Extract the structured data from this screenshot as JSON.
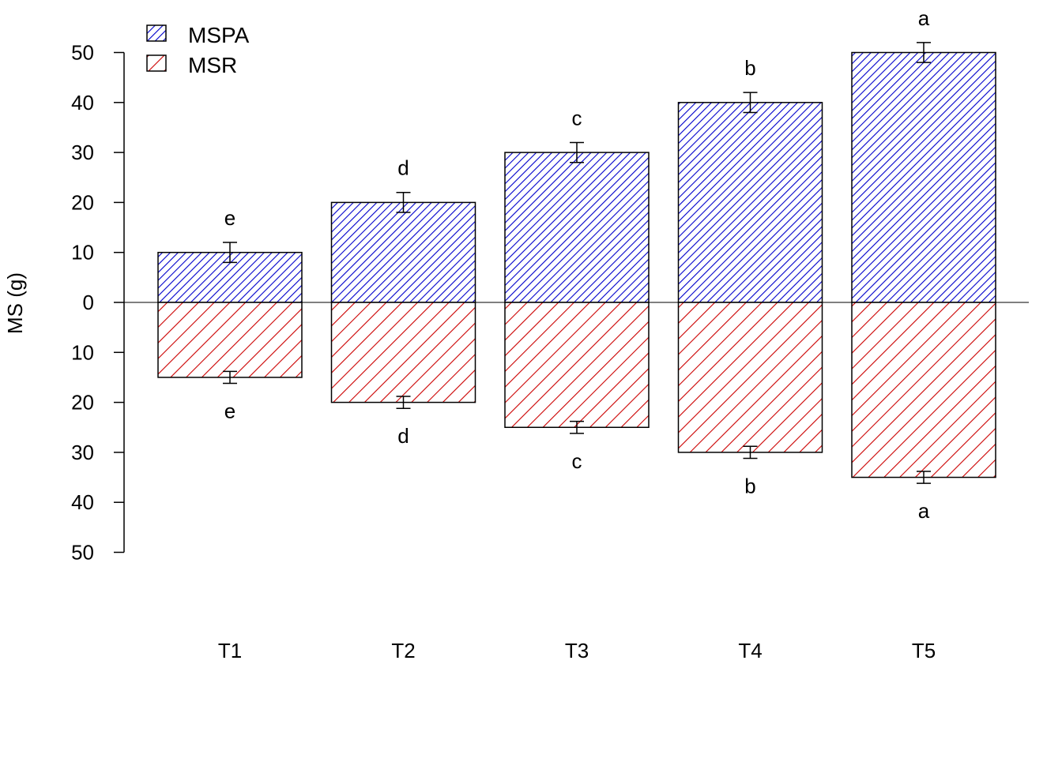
{
  "chart_data": {
    "type": "bar",
    "ylabel": "MS (g)",
    "xlabel": "",
    "categories": [
      "T1",
      "T2",
      "T3",
      "T4",
      "T5"
    ],
    "ylim": [
      -50,
      50
    ],
    "yticks": [
      50,
      40,
      30,
      20,
      10,
      0,
      10,
      20,
      30,
      40,
      50
    ],
    "legend_position": "top-left",
    "zero_line": true,
    "series": [
      {
        "name": "MSPA",
        "direction": "up",
        "color": "#0000cc",
        "hatch": "diagonal-dense",
        "values": [
          10,
          20,
          30,
          40,
          50
        ],
        "errors": [
          2,
          2,
          2,
          2,
          2
        ],
        "letters": [
          "e",
          "d",
          "c",
          "b",
          "a"
        ]
      },
      {
        "name": "MSR",
        "direction": "down",
        "color": "#cc0000",
        "hatch": "diagonal-sparse",
        "values": [
          15,
          20,
          25,
          30,
          35
        ],
        "errors": [
          1.2,
          1.2,
          1.2,
          1.2,
          1.2
        ],
        "letters": [
          "e",
          "d",
          "c",
          "b",
          "a"
        ]
      }
    ]
  }
}
